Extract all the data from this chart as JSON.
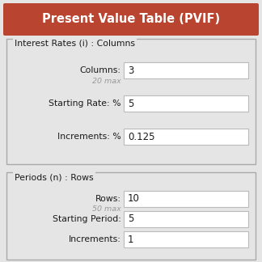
{
  "title": "Present Value Table (PVIF)",
  "title_bg": "#b94430",
  "title_color": "#ffffff",
  "title_fontsize": 10.5,
  "bg_color": "#e5e5e5",
  "section1_label": "Interest Rates (i) : Columns",
  "section2_label": "Periods (n) : Rows",
  "fields_section1": [
    {
      "label": "Columns:",
      "value": "3",
      "sublabel": "20 max",
      "sublabel_color": "#999999"
    },
    {
      "label": "Starting Rate: %",
      "value": "5",
      "sublabel": null
    },
    {
      "label": "Increments: %",
      "value": "0.125",
      "sublabel": null
    }
  ],
  "fields_section2": [
    {
      "label": "Rows:",
      "value": "10",
      "sublabel": "50 max",
      "sublabel_color": "#999999"
    },
    {
      "label": "Starting Period:",
      "value": "5",
      "sublabel": null
    },
    {
      "label": "Increments:",
      "value": "1",
      "sublabel": null
    }
  ],
  "input_bg": "#ffffff",
  "input_border": "#bbbbbb",
  "label_color": "#1a1a1a",
  "section_label_color": "#1a1a1a",
  "section_border_color": "#aaaaaa",
  "figsize": [
    3.24,
    3.24
  ],
  "dpi": 100
}
